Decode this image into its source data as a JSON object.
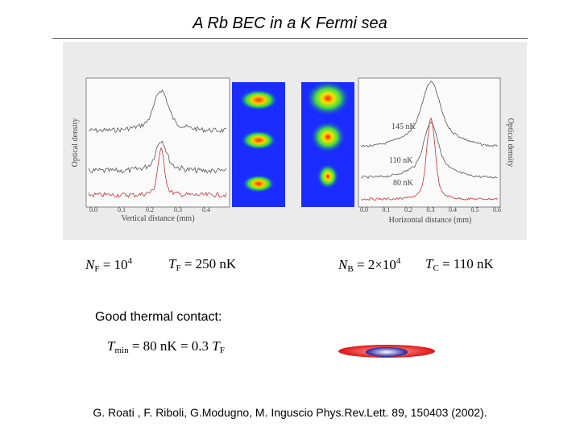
{
  "title": "A Rb BEC in a K Fermi sea",
  "figure": {
    "left": {
      "y_label": "Optical density",
      "x_label": "Vertical distance (mm)",
      "ticks": [
        "0.0",
        "0.1",
        "0.2",
        "0.3",
        "0.4"
      ]
    },
    "right": {
      "y_label": "Optical density",
      "x_label": "Horizontal distance (mm)",
      "ticks": [
        "0.0",
        "0.1",
        "0.2",
        "0.3",
        "0.4",
        "0.5",
        "0.6"
      ],
      "curve_labels": [
        "145 nK",
        "110 nK",
        "80 nK"
      ]
    }
  },
  "formulas": [
    {
      "symbol": "N",
      "sub": "F",
      "rest": "= 10",
      "sup": "4"
    },
    {
      "symbol": "T",
      "sub": "F",
      "rest": "= 250 nK"
    },
    {
      "symbol": "N",
      "sub": "B",
      "rest": "= 2×10",
      "sup": "4"
    },
    {
      "symbol": "T",
      "sub": "C",
      "rest": "= 110 nK"
    }
  ],
  "contact": "Good thermal contact:",
  "tmin": {
    "symbol": "T",
    "sub": "min",
    "rest": "= 80 nK = 0.3 ",
    "symbol2": "T",
    "sub2": "F"
  },
  "citation": "G. Roati , F. Riboli, G.Modugno, M. Inguscio Phys.Rev.Lett.  89, 150403 (2002)."
}
